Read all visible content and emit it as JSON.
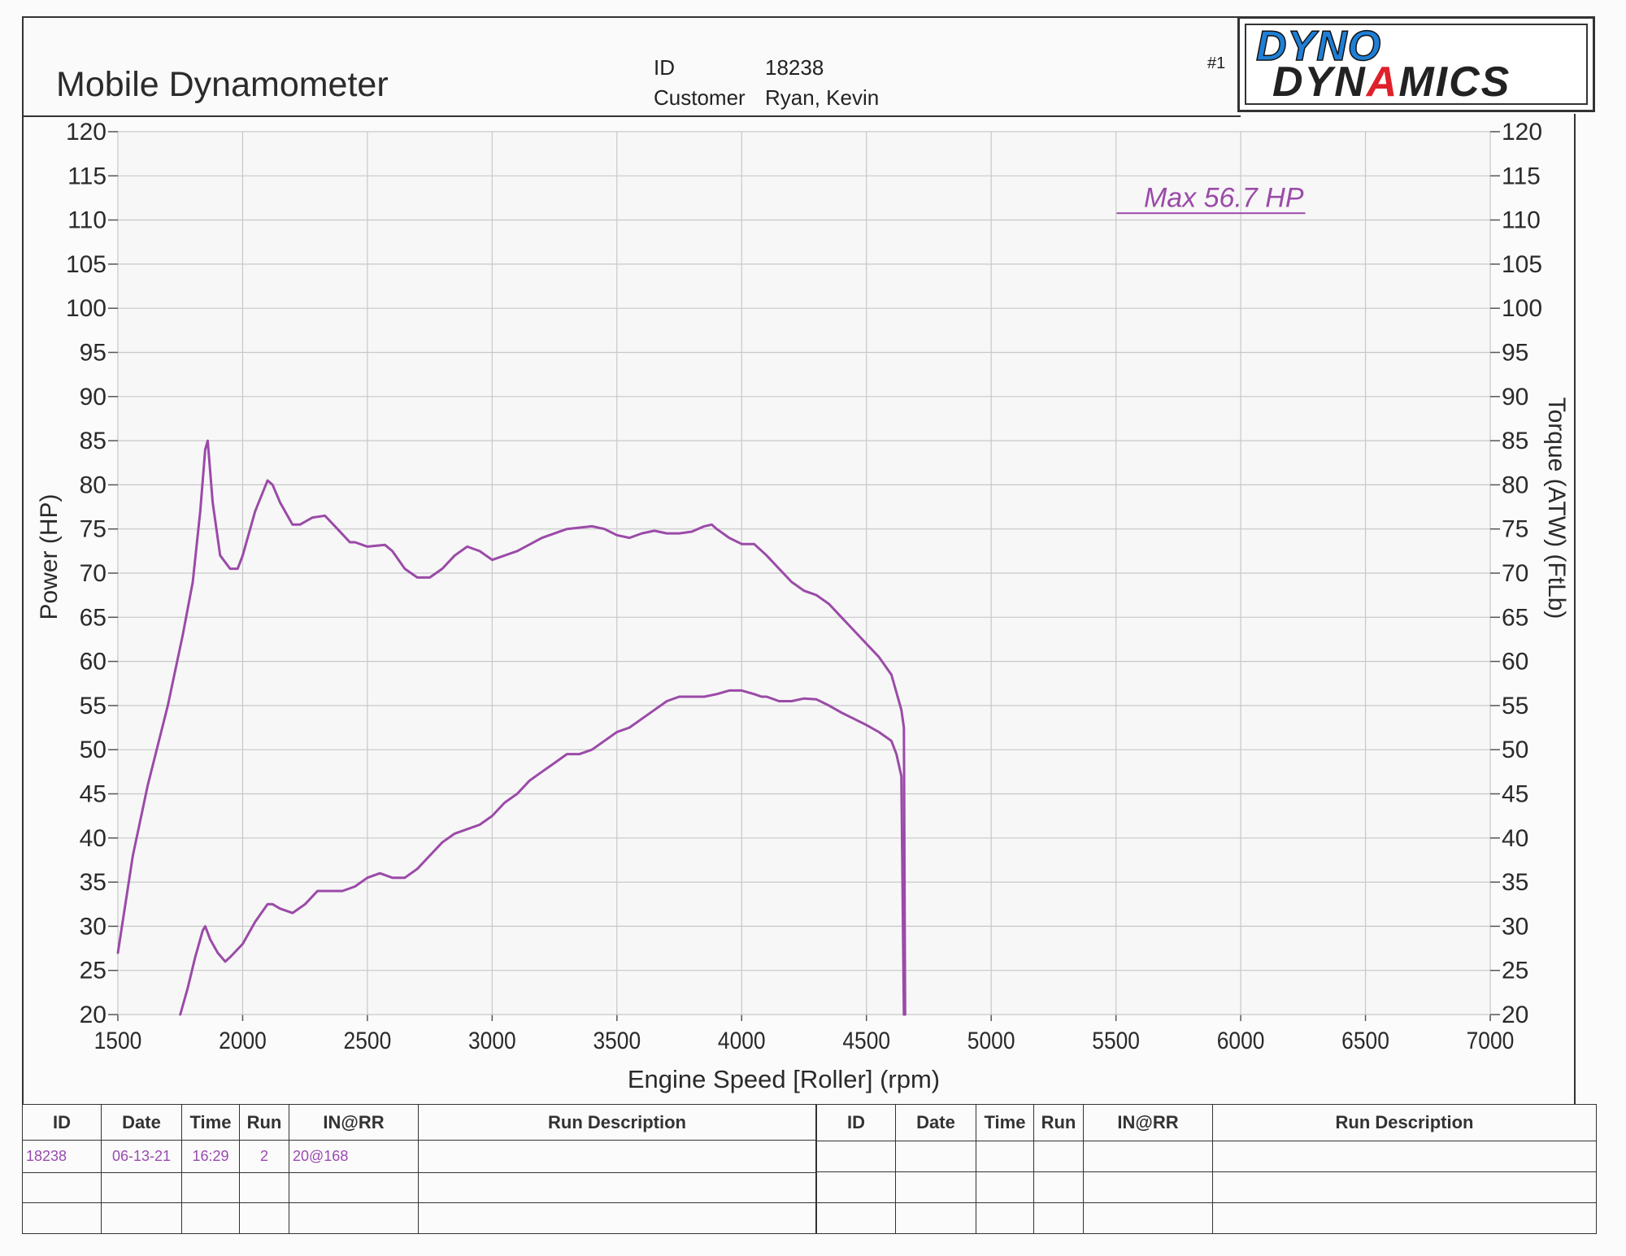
{
  "header": {
    "title": "Mobile Dynamometer",
    "id_label": "ID",
    "id_value": "18238",
    "customer_label": "Customer",
    "customer_value": "Ryan, Kevin",
    "run_number": "#1",
    "logo_line1": "DYNO",
    "logo_line2": "DYNAMICS"
  },
  "chart_data": {
    "type": "line",
    "xlabel": "Engine Speed [Roller] (rpm)",
    "ylabel_left": "Power (HP)",
    "ylabel_right": "Torque (ATW) (FtLb)",
    "xlim": [
      1500,
      7000
    ],
    "ylim": [
      20,
      120
    ],
    "x_ticks": [
      1500,
      2000,
      2500,
      3000,
      3500,
      4000,
      4500,
      5000,
      5500,
      6000,
      6500,
      7000
    ],
    "y_ticks": [
      20,
      25,
      30,
      35,
      40,
      45,
      50,
      55,
      60,
      65,
      70,
      75,
      80,
      85,
      90,
      95,
      100,
      105,
      110,
      115,
      120
    ],
    "grid": true,
    "annotation": "Max 56.7 HP",
    "color": "#9b4aa8",
    "series": [
      {
        "name": "",
        "x": [
          1500,
          1560,
          1620,
          1700,
          1760,
          1800,
          1830,
          1850,
          1860,
          1880,
          1910,
          1950,
          1980,
          2000,
          2050,
          2100,
          2120,
          2150,
          2200,
          2230,
          2280,
          2330,
          2380,
          2430,
          2450,
          2500,
          2570,
          2600,
          2650,
          2700,
          2750,
          2800,
          2850,
          2900,
          2950,
          3000,
          3100,
          3200,
          3300,
          3400,
          3450,
          3500,
          3550,
          3600,
          3650,
          3700,
          3750,
          3800,
          3850,
          3880,
          3900,
          3950,
          4000,
          4050,
          4100,
          4150,
          4200,
          4250,
          4300,
          4350,
          4400,
          4450,
          4500,
          4550,
          4600,
          4620,
          4640,
          4650,
          4655
        ],
        "values": [
          27,
          38,
          46,
          55,
          63,
          69,
          77,
          84,
          85,
          78,
          72,
          70.5,
          70.5,
          72,
          77,
          80.5,
          80,
          78,
          75.5,
          75.5,
          76.3,
          76.5,
          75,
          73.5,
          73.5,
          73.0,
          73.2,
          72.5,
          70.5,
          69.5,
          69.5,
          70.5,
          72,
          73,
          72.5,
          71.5,
          72.5,
          74,
          75,
          75.3,
          75.0,
          74.3,
          74.0,
          74.5,
          74.8,
          74.5,
          74.5,
          74.7,
          75.3,
          75.5,
          75.0,
          74.0,
          73.3,
          73.3,
          72.0,
          70.5,
          69.0,
          68.0,
          67.5,
          66.5,
          65.0,
          63.5,
          62.0,
          60.5,
          58.5,
          56.5,
          54.5,
          52.5,
          20
        ]
      },
      {
        "name": "",
        "x": [
          1750,
          1780,
          1810,
          1840,
          1850,
          1870,
          1900,
          1930,
          1950,
          2000,
          2050,
          2100,
          2120,
          2150,
          2200,
          2250,
          2300,
          2350,
          2400,
          2450,
          2500,
          2550,
          2600,
          2650,
          2700,
          2750,
          2800,
          2850,
          2900,
          2950,
          3000,
          3050,
          3100,
          3150,
          3200,
          3250,
          3300,
          3350,
          3400,
          3450,
          3500,
          3550,
          3600,
          3650,
          3700,
          3750,
          3800,
          3850,
          3900,
          3950,
          4000,
          4050,
          4080,
          4100,
          4150,
          4200,
          4250,
          4300,
          4350,
          4400,
          4450,
          4500,
          4550,
          4600,
          4620,
          4640,
          4650
        ],
        "values": [
          20,
          23,
          26.5,
          29.5,
          30,
          28.5,
          27,
          26,
          26.5,
          28,
          30.5,
          32.5,
          32.5,
          32,
          31.5,
          32.5,
          34,
          34,
          34,
          34.5,
          35.5,
          36,
          35.5,
          35.5,
          36.5,
          38,
          39.5,
          40.5,
          41,
          41.5,
          42.5,
          44,
          45,
          46.5,
          47.5,
          48.5,
          49.5,
          49.5,
          50,
          51,
          52,
          52.5,
          53.5,
          54.5,
          55.5,
          56.0,
          56.0,
          56.0,
          56.3,
          56.7,
          56.7,
          56.3,
          56.0,
          56.0,
          55.5,
          55.5,
          55.8,
          55.7,
          55.0,
          54.2,
          53.5,
          52.8,
          52.0,
          51.0,
          49.5,
          47.0,
          20
        ]
      }
    ]
  },
  "table": {
    "headers": [
      "ID",
      "Date",
      "Time",
      "Run",
      "IN@RR",
      "Run Description"
    ],
    "rows": [
      [
        "18238",
        "06-13-21",
        "16:29",
        "2",
        "20@168",
        ""
      ]
    ]
  }
}
